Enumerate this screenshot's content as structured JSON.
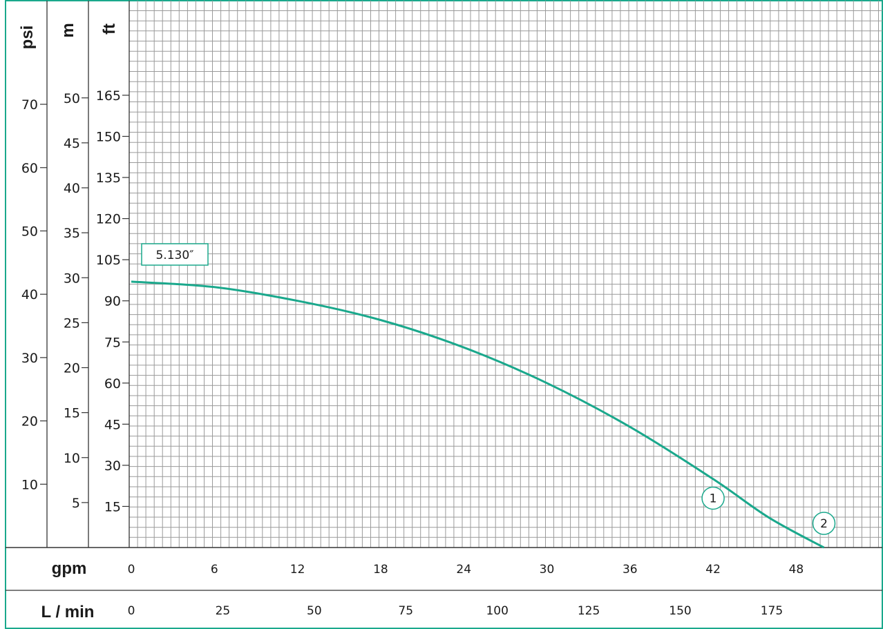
{
  "chart_data": {
    "type": "line",
    "accent_color": "#1aa88c",
    "grid": true,
    "axes": {
      "psi": {
        "label": "psi",
        "ticks": [
          10,
          20,
          30,
          40,
          50,
          60,
          70
        ],
        "tick_labels": [
          "10",
          "20",
          "30",
          "40",
          "50",
          "60",
          "70"
        ]
      },
      "m": {
        "label": "m",
        "ticks": [
          5,
          10,
          15,
          20,
          25,
          30,
          35,
          40,
          45,
          50
        ],
        "tick_labels": [
          "5",
          "10",
          "15",
          "20",
          "25",
          "30",
          "35",
          "40",
          "45",
          "50"
        ]
      },
      "ft": {
        "label": "ft",
        "ticks": [
          15,
          30,
          45,
          60,
          75,
          90,
          105,
          120,
          135,
          150,
          165
        ],
        "tick_labels": [
          "15",
          "30",
          "45",
          "60",
          "75",
          "90",
          "105",
          "120",
          "135",
          "150",
          "165"
        ]
      },
      "gpm": {
        "label": "gpm",
        "ticks": [
          0,
          6,
          12,
          18,
          24,
          30,
          36,
          42,
          48
        ],
        "tick_labels": [
          "0",
          "6",
          "12",
          "18",
          "24",
          "30",
          "36",
          "42",
          "48"
        ],
        "range": [
          0,
          54
        ]
      },
      "lmin": {
        "label": "L / min",
        "ticks": [
          0,
          25,
          50,
          75,
          100,
          125,
          150,
          175
        ],
        "tick_labels": [
          "0",
          "25",
          "50",
          "75",
          "100",
          "125",
          "150",
          "175"
        ]
      }
    },
    "series": [
      {
        "label": "5.130″",
        "x_gpm": [
          0,
          6,
          12,
          18,
          24,
          30,
          36,
          42,
          46,
          50
        ],
        "y_ft": [
          97,
          95,
          90,
          83,
          73,
          60,
          44,
          25,
          11,
          0
        ]
      }
    ],
    "markers": [
      {
        "label": "1",
        "x_gpm": 42.0,
        "y_ft": 15
      },
      {
        "label": "2",
        "x_gpm": 50.0,
        "y_ft": 5.8
      }
    ]
  }
}
